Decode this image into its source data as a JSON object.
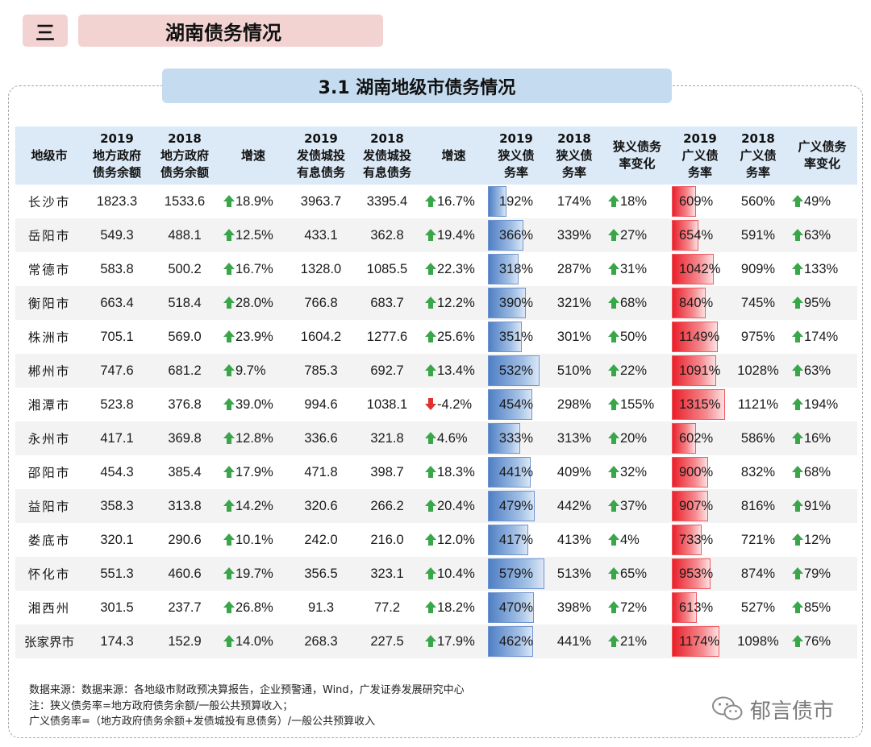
{
  "section": {
    "number": "三",
    "title": "湖南债务情况"
  },
  "subtitle": "3.1  湖南地级市债务情况",
  "headers": [
    [
      "地级市"
    ],
    [
      "2019",
      "地方政府",
      "债务余额"
    ],
    [
      "2018",
      "地方政府",
      "债务余额"
    ],
    [
      "增速"
    ],
    [
      "2019",
      "发债城投",
      "有息债务"
    ],
    [
      "2018",
      "发债城投",
      "有息债务"
    ],
    [
      "增速"
    ],
    [
      "2019",
      "狭义债",
      "务率"
    ],
    [
      "2018",
      "狭义债",
      "务率"
    ],
    [
      "狭义债务",
      "率变化"
    ],
    [
      "2019",
      "广义债",
      "务率"
    ],
    [
      "2018",
      "广义债",
      "务率"
    ],
    [
      "广义债务",
      "率变化"
    ]
  ],
  "rows": [
    {
      "city": "长沙市",
      "d19": "1823.3",
      "d18": "1533.6",
      "g1": "18.9%",
      "g1dir": "up",
      "c19": "3963.7",
      "c18": "3395.4",
      "g2": "16.7%",
      "g2dir": "up",
      "n19": "192%",
      "n19v": 192,
      "n18": "174%",
      "nc": "18%",
      "ncdir": "up",
      "b19": "609%",
      "b19v": 609,
      "b18": "560%",
      "bc": "49%",
      "bcdir": "up"
    },
    {
      "city": "岳阳市",
      "d19": "549.3",
      "d18": "488.1",
      "g1": "12.5%",
      "g1dir": "up",
      "c19": "433.1",
      "c18": "362.8",
      "g2": "19.4%",
      "g2dir": "up",
      "n19": "366%",
      "n19v": 366,
      "n18": "339%",
      "nc": "27%",
      "ncdir": "up",
      "b19": "654%",
      "b19v": 654,
      "b18": "591%",
      "bc": "63%",
      "bcdir": "up"
    },
    {
      "city": "常德市",
      "d19": "583.8",
      "d18": "500.2",
      "g1": "16.7%",
      "g1dir": "up",
      "c19": "1328.0",
      "c18": "1085.5",
      "g2": "22.3%",
      "g2dir": "up",
      "n19": "318%",
      "n19v": 318,
      "n18": "287%",
      "nc": "31%",
      "ncdir": "up",
      "b19": "1042%",
      "b19v": 1042,
      "b18": "909%",
      "bc": "133%",
      "bcdir": "up"
    },
    {
      "city": "衡阳市",
      "d19": "663.4",
      "d18": "518.4",
      "g1": "28.0%",
      "g1dir": "up",
      "c19": "766.8",
      "c18": "683.7",
      "g2": "12.2%",
      "g2dir": "up",
      "n19": "390%",
      "n19v": 390,
      "n18": "321%",
      "nc": "68%",
      "ncdir": "up",
      "b19": "840%",
      "b19v": 840,
      "b18": "745%",
      "bc": "95%",
      "bcdir": "up"
    },
    {
      "city": "株洲市",
      "d19": "705.1",
      "d18": "569.0",
      "g1": "23.9%",
      "g1dir": "up",
      "c19": "1604.2",
      "c18": "1277.6",
      "g2": "25.6%",
      "g2dir": "up",
      "n19": "351%",
      "n19v": 351,
      "n18": "301%",
      "nc": "50%",
      "ncdir": "up",
      "b19": "1149%",
      "b19v": 1149,
      "b18": "975%",
      "bc": "174%",
      "bcdir": "up"
    },
    {
      "city": "郴州市",
      "d19": "747.6",
      "d18": "681.2",
      "g1": "9.7%",
      "g1dir": "up",
      "c19": "785.3",
      "c18": "692.7",
      "g2": "13.4%",
      "g2dir": "up",
      "n19": "532%",
      "n19v": 532,
      "n18": "510%",
      "nc": "22%",
      "ncdir": "up",
      "b19": "1091%",
      "b19v": 1091,
      "b18": "1028%",
      "bc": "63%",
      "bcdir": "up"
    },
    {
      "city": "湘潭市",
      "d19": "523.8",
      "d18": "376.8",
      "g1": "39.0%",
      "g1dir": "up",
      "c19": "994.6",
      "c18": "1038.1",
      "g2": "-4.2%",
      "g2dir": "down",
      "n19": "454%",
      "n19v": 454,
      "n18": "298%",
      "nc": "155%",
      "ncdir": "up",
      "b19": "1315%",
      "b19v": 1315,
      "b18": "1121%",
      "bc": "194%",
      "bcdir": "up"
    },
    {
      "city": "永州市",
      "d19": "417.1",
      "d18": "369.8",
      "g1": "12.8%",
      "g1dir": "up",
      "c19": "336.6",
      "c18": "321.8",
      "g2": "4.6%",
      "g2dir": "up",
      "n19": "333%",
      "n19v": 333,
      "n18": "313%",
      "nc": "20%",
      "ncdir": "up",
      "b19": "602%",
      "b19v": 602,
      "b18": "586%",
      "bc": "16%",
      "bcdir": "up"
    },
    {
      "city": "邵阳市",
      "d19": "454.3",
      "d18": "385.4",
      "g1": "17.9%",
      "g1dir": "up",
      "c19": "471.8",
      "c18": "398.7",
      "g2": "18.3%",
      "g2dir": "up",
      "n19": "441%",
      "n19v": 441,
      "n18": "409%",
      "nc": "32%",
      "ncdir": "up",
      "b19": "900%",
      "b19v": 900,
      "b18": "832%",
      "bc": "68%",
      "bcdir": "up"
    },
    {
      "city": "益阳市",
      "d19": "358.3",
      "d18": "313.8",
      "g1": "14.2%",
      "g1dir": "up",
      "c19": "320.6",
      "c18": "266.2",
      "g2": "20.4%",
      "g2dir": "up",
      "n19": "479%",
      "n19v": 479,
      "n18": "442%",
      "nc": "37%",
      "ncdir": "up",
      "b19": "907%",
      "b19v": 907,
      "b18": "816%",
      "bc": "91%",
      "bcdir": "up"
    },
    {
      "city": "娄底市",
      "d19": "320.1",
      "d18": "290.6",
      "g1": "10.1%",
      "g1dir": "up",
      "c19": "242.0",
      "c18": "216.0",
      "g2": "12.0%",
      "g2dir": "up",
      "n19": "417%",
      "n19v": 417,
      "n18": "413%",
      "nc": "4%",
      "ncdir": "up",
      "b19": "733%",
      "b19v": 733,
      "b18": "721%",
      "bc": "12%",
      "bcdir": "up"
    },
    {
      "city": "怀化市",
      "d19": "551.3",
      "d18": "460.6",
      "g1": "19.7%",
      "g1dir": "up",
      "c19": "356.5",
      "c18": "323.1",
      "g2": "10.4%",
      "g2dir": "up",
      "n19": "579%",
      "n19v": 579,
      "n18": "513%",
      "nc": "65%",
      "ncdir": "up",
      "b19": "953%",
      "b19v": 953,
      "b18": "874%",
      "bc": "79%",
      "bcdir": "up"
    },
    {
      "city": "湘西州",
      "d19": "301.5",
      "d18": "237.7",
      "g1": "26.8%",
      "g1dir": "up",
      "c19": "91.3",
      "c18": "77.2",
      "g2": "18.2%",
      "g2dir": "up",
      "n19": "470%",
      "n19v": 470,
      "n18": "398%",
      "nc": "72%",
      "ncdir": "up",
      "b19": "613%",
      "b19v": 613,
      "b18": "527%",
      "bc": "85%",
      "bcdir": "up"
    },
    {
      "city": "张家界市",
      "d19": "174.3",
      "d18": "152.9",
      "g1": "14.0%",
      "g1dir": "up",
      "c19": "268.3",
      "c18": "227.5",
      "g2": "17.9%",
      "g2dir": "up",
      "n19": "462%",
      "n19v": 462,
      "n18": "441%",
      "nc": "21%",
      "ncdir": "up",
      "b19": "1174%",
      "b19v": 1174,
      "b18": "1098%",
      "bc": "76%",
      "bcdir": "up"
    }
  ],
  "notes": [
    "数据来源：数据来源：各地级市财政预决算报告，企业预警通，Wind，广发证券发展研究中心",
    "注：狭义债务率=地方政府债务余额/一般公共预算收入；",
    "广义债务率=（地方政府债务余额+发债城投有息债务）/一般公共预算收入"
  ],
  "watermark": "郁言债市",
  "colors": {
    "up": "#3aa64a",
    "down": "#e0302f",
    "bar_blue": "#4f7fc4",
    "bar_red": "#ea1f2a",
    "header_bg": "#dce9f6",
    "title_bg": "#f3d2d2",
    "subtitle_bg": "#c5dcf0"
  },
  "icons": {
    "up": "up-arrow-icon",
    "down": "down-arrow-icon",
    "watermark": "wechat-icon"
  }
}
